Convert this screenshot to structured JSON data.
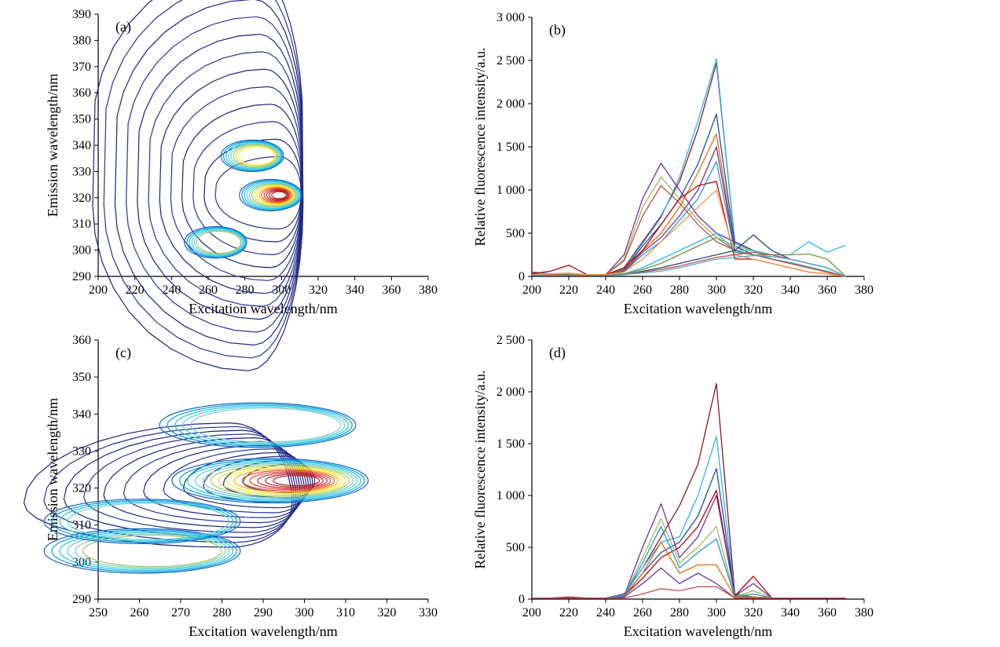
{
  "chart_data": [
    {
      "panel": "(a)",
      "type": "contour",
      "xlabel": "Excitation wavelength/nm",
      "ylabel": "Emission wavelength/nm",
      "xlim": [
        200,
        380
      ],
      "ylim": [
        290,
        390
      ],
      "xticks": [
        "200",
        "220",
        "240",
        "260",
        "280",
        "300",
        "320",
        "340",
        "360",
        "380"
      ],
      "yticks": [
        "290",
        "300",
        "310",
        "320",
        "330",
        "340",
        "350",
        "360",
        "370",
        "380",
        "390"
      ],
      "peaks": [
        {
          "ex": 300,
          "em": 321,
          "level": 1.0
        },
        {
          "ex": 290,
          "em": 336,
          "level": 0.55
        },
        {
          "ex": 270,
          "em": 303,
          "level": 0.45
        }
      ],
      "colormap": [
        "#1a237e",
        "#283593",
        "#1565c0",
        "#039be5",
        "#26c6da",
        "#4dd0e1",
        "#80cbc4",
        "#9ccc65",
        "#d4e157",
        "#ffeb3b",
        "#ffb300",
        "#f4511e",
        "#e53935",
        "#b71c1c"
      ]
    },
    {
      "panel": "(b)",
      "type": "line",
      "xlabel": "Excitation wavelength/nm",
      "ylabel": "Relative fluorescence intensity/a.u.",
      "xlim": [
        200,
        380
      ],
      "ylim": [
        0,
        3000
      ],
      "xticks": [
        "200",
        "220",
        "240",
        "260",
        "280",
        "300",
        "320",
        "340",
        "360",
        "380"
      ],
      "yticks": [
        "0",
        "500",
        "1 000",
        "1 500",
        "2 000",
        "2 500",
        "3 000"
      ],
      "x": [
        200,
        210,
        220,
        230,
        240,
        250,
        260,
        270,
        280,
        290,
        300,
        310,
        320,
        330,
        340,
        350,
        360,
        370
      ],
      "series": [
        {
          "values": [
            50,
            30,
            20,
            10,
            10,
            100,
            400,
            700,
            1100,
            1700,
            2470,
            400,
            300,
            200,
            150,
            100,
            50,
            0
          ]
        },
        {
          "values": [
            40,
            30,
            20,
            10,
            10,
            90,
            380,
            680,
            1150,
            1800,
            2520,
            380,
            300,
            200,
            160,
            110,
            60,
            0
          ]
        },
        {
          "values": [
            30,
            20,
            20,
            10,
            10,
            80,
            350,
            600,
            900,
            1300,
            1880,
            350,
            250,
            200,
            150,
            100,
            50,
            0
          ]
        },
        {
          "values": [
            30,
            20,
            20,
            10,
            10,
            70,
            300,
            500,
            800,
            1200,
            1650,
            300,
            250,
            200,
            150,
            100,
            50,
            0
          ]
        },
        {
          "values": [
            20,
            20,
            20,
            10,
            10,
            60,
            280,
            450,
            700,
            1000,
            1500,
            300,
            250,
            200,
            150,
            100,
            50,
            0
          ]
        },
        {
          "values": [
            20,
            20,
            20,
            10,
            10,
            50,
            250,
            400,
            650,
            900,
            1330,
            280,
            250,
            200,
            150,
            100,
            50,
            0
          ]
        },
        {
          "values": [
            10,
            20,
            20,
            10,
            20,
            250,
            900,
            1310,
            1000,
            700,
            500,
            400,
            300,
            200,
            150,
            100,
            50,
            0
          ]
        },
        {
          "values": [
            10,
            20,
            30,
            10,
            20,
            200,
            800,
            1150,
            900,
            650,
            450,
            350,
            300,
            200,
            150,
            100,
            50,
            0
          ]
        },
        {
          "values": [
            10,
            20,
            20,
            10,
            20,
            180,
            700,
            1050,
            850,
            600,
            400,
            300,
            250,
            200,
            150,
            100,
            50,
            0
          ]
        },
        {
          "values": [
            30,
            60,
            130,
            20,
            20,
            100,
            300,
            600,
            900,
            1050,
            1100,
            200,
            200,
            150,
            100,
            50,
            30,
            0
          ]
        },
        {
          "values": [
            20,
            30,
            40,
            20,
            20,
            50,
            200,
            400,
            600,
            800,
            1000,
            250,
            200,
            150,
            100,
            50,
            30,
            0
          ]
        },
        {
          "values": [
            10,
            10,
            10,
            10,
            10,
            30,
            100,
            200,
            300,
            400,
            500,
            300,
            300,
            250,
            250,
            400,
            280,
            360
          ]
        },
        {
          "values": [
            10,
            10,
            10,
            10,
            10,
            30,
            80,
            150,
            250,
            350,
            450,
            300,
            250,
            250,
            250,
            260,
            200,
            0
          ]
        },
        {
          "values": [
            10,
            10,
            10,
            10,
            10,
            20,
            60,
            100,
            150,
            200,
            250,
            300,
            480,
            300,
            200,
            150,
            100,
            0
          ]
        },
        {
          "values": [
            10,
            10,
            10,
            10,
            10,
            20,
            50,
            80,
            120,
            170,
            220,
            250,
            280,
            250,
            200,
            150,
            100,
            0
          ]
        },
        {
          "values": [
            10,
            10,
            10,
            10,
            10,
            20,
            40,
            60,
            100,
            150,
            200,
            220,
            240,
            230,
            200,
            150,
            100,
            0
          ]
        }
      ],
      "colors": [
        "#8b1a1a",
        "#29b6f6",
        "#1f4e9c",
        "#e36c0a",
        "#7030a0",
        "#1f9bd1",
        "#7030a0",
        "#9bbb59",
        "#c0504d",
        "#c00000",
        "#f79646",
        "#29b6f6",
        "#77933c",
        "#1f497d",
        "#c0504d",
        "#4bacc6"
      ]
    },
    {
      "panel": "(c)",
      "type": "contour",
      "xlabel": "Excitation wavelength/nm",
      "ylabel": "Emission wavelength/nm",
      "xlim": [
        250,
        330
      ],
      "ylim": [
        290,
        360
      ],
      "xticks": [
        "250",
        "260",
        "270",
        "280",
        "290",
        "300",
        "310",
        "320",
        "330"
      ],
      "yticks": [
        "290",
        "300",
        "310",
        "320",
        "330",
        "340",
        "350",
        "360"
      ],
      "peaks": [
        {
          "ex": 300,
          "em": 322,
          "level": 1.0
        },
        {
          "ex": 297,
          "em": 337,
          "level": 0.35
        },
        {
          "ex": 269,
          "em": 303,
          "level": 0.4
        },
        {
          "ex": 269,
          "em": 311,
          "level": 0.3
        }
      ],
      "colormap": [
        "#1a237e",
        "#283593",
        "#1565c0",
        "#039be5",
        "#26c6da",
        "#4dd0e1",
        "#80cbc4",
        "#9ccc65",
        "#d4e157",
        "#ffeb3b",
        "#ffb300",
        "#f4511e",
        "#e53935",
        "#b71c1c"
      ]
    },
    {
      "panel": "(d)",
      "type": "line",
      "xlabel": "Excitation wavelength/nm",
      "ylabel": "Relative fluorescence intensity/a.u.",
      "xlim": [
        200,
        380
      ],
      "ylim": [
        0,
        2500
      ],
      "xticks": [
        "200",
        "220",
        "240",
        "260",
        "280",
        "300",
        "320",
        "340",
        "360",
        "380"
      ],
      "yticks": [
        "0",
        "500",
        "1 000",
        "1 500",
        "2 000",
        "2 500"
      ],
      "x": [
        200,
        210,
        220,
        230,
        240,
        250,
        260,
        270,
        280,
        290,
        300,
        310,
        320,
        330,
        340,
        350,
        360,
        370
      ],
      "series": [
        {
          "values": [
            10,
            10,
            20,
            10,
            10,
            50,
            300,
            600,
            900,
            1300,
            2080,
            50,
            20,
            10,
            10,
            10,
            10,
            10
          ]
        },
        {
          "values": [
            10,
            10,
            10,
            10,
            10,
            40,
            300,
            550,
            600,
            1000,
            1570,
            40,
            20,
            10,
            10,
            10,
            10,
            10
          ]
        },
        {
          "values": [
            10,
            10,
            10,
            10,
            10,
            30,
            250,
            450,
            550,
            800,
            1260,
            30,
            20,
            10,
            10,
            10,
            10,
            10
          ]
        },
        {
          "values": [
            10,
            10,
            10,
            10,
            10,
            30,
            200,
            400,
            500,
            700,
            1050,
            30,
            220,
            10,
            10,
            10,
            10,
            10
          ]
        },
        {
          "values": [
            10,
            10,
            10,
            10,
            10,
            30,
            500,
            920,
            400,
            600,
            1000,
            30,
            150,
            10,
            10,
            10,
            10,
            10
          ]
        },
        {
          "values": [
            10,
            10,
            10,
            10,
            10,
            30,
            400,
            780,
            350,
            500,
            700,
            20,
            80,
            10,
            10,
            10,
            10,
            10
          ]
        },
        {
          "values": [
            10,
            10,
            10,
            10,
            10,
            30,
            350,
            700,
            300,
            450,
            580,
            20,
            50,
            10,
            10,
            10,
            10,
            10
          ]
        },
        {
          "values": [
            10,
            10,
            10,
            10,
            10,
            20,
            250,
            550,
            250,
            330,
            330,
            20,
            20,
            10,
            10,
            10,
            10,
            10
          ]
        },
        {
          "values": [
            10,
            10,
            10,
            10,
            10,
            20,
            150,
            300,
            150,
            250,
            150,
            10,
            10,
            10,
            10,
            10,
            10,
            10
          ]
        },
        {
          "values": [
            10,
            10,
            10,
            10,
            10,
            10,
            50,
            100,
            80,
            120,
            120,
            10,
            10,
            10,
            10,
            10,
            10,
            10
          ]
        }
      ],
      "colors": [
        "#8b1a1a",
        "#29b6f6",
        "#1f4e9c",
        "#c00000",
        "#7030a0",
        "#9bbb59",
        "#1f9bd1",
        "#e36c0a",
        "#7030a0",
        "#c0504d"
      ]
    }
  ]
}
